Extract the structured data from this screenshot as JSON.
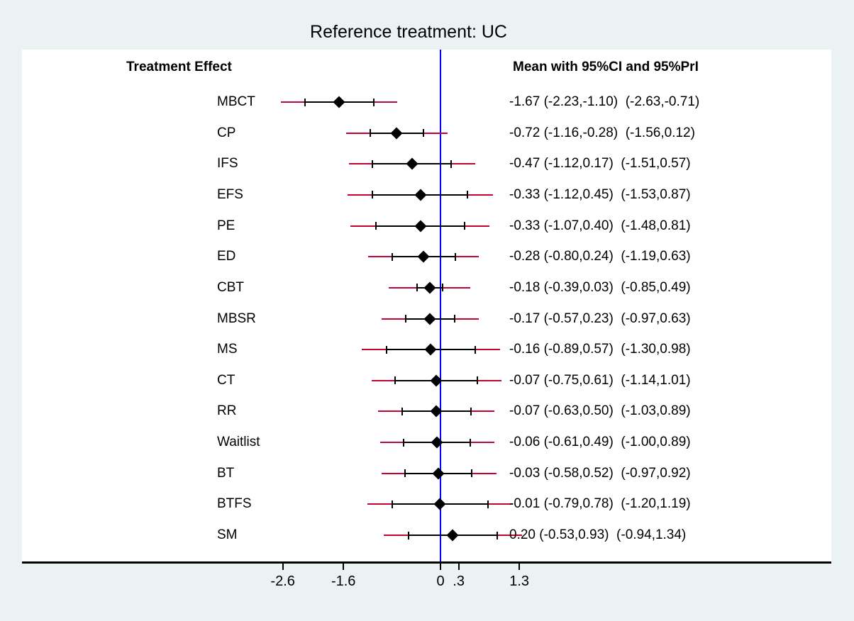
{
  "title": "Reference treatment: UC",
  "columns": {
    "left_header": "Treatment Effect",
    "right_header": "Mean with 95%CI and 95%PrI"
  },
  "chart_data": {
    "type": "forest",
    "title": "Reference treatment: UC",
    "xlabel": "",
    "ylabel": "",
    "reference_value": 0,
    "legend": "none",
    "grid": "off",
    "x_ticks": [
      {
        "label": "-2.6",
        "value": -2.6
      },
      {
        "label": "-1.6",
        "value": -1.6
      },
      {
        "label": "0",
        "value": 0
      },
      {
        "label": ".3",
        "value": 0.3
      },
      {
        "label": "1.3",
        "value": 1.3
      }
    ],
    "colors": {
      "background": "#eaf2f3",
      "plot_background": "#ffffff",
      "confidence_interval": "#000000",
      "prediction_interval": "#c10534",
      "reference_line": "#0000ff"
    },
    "rows": [
      {
        "label": "MBCT",
        "mean": -1.67,
        "ci": [
          -2.23,
          -1.1
        ],
        "pri": [
          -2.63,
          -0.71
        ],
        "text": "-1.67 (-2.23,-1.10)  (-2.63,-0.71)"
      },
      {
        "label": "CP",
        "mean": -0.72,
        "ci": [
          -1.16,
          -0.28
        ],
        "pri": [
          -1.56,
          0.12
        ],
        "text": "-0.72 (-1.16,-0.28)  (-1.56,0.12)"
      },
      {
        "label": "IFS",
        "mean": -0.47,
        "ci": [
          -1.12,
          0.17
        ],
        "pri": [
          -1.51,
          0.57
        ],
        "text": "-0.47 (-1.12,0.17)  (-1.51,0.57)"
      },
      {
        "label": "EFS",
        "mean": -0.33,
        "ci": [
          -1.12,
          0.45
        ],
        "pri": [
          -1.53,
          0.87
        ],
        "text": "-0.33 (-1.12,0.45)  (-1.53,0.87)"
      },
      {
        "label": "PE",
        "mean": -0.33,
        "ci": [
          -1.07,
          0.4
        ],
        "pri": [
          -1.48,
          0.81
        ],
        "text": "-0.33 (-1.07,0.40)  (-1.48,0.81)"
      },
      {
        "label": "ED",
        "mean": -0.28,
        "ci": [
          -0.8,
          0.24
        ],
        "pri": [
          -1.19,
          0.63
        ],
        "text": "-0.28 (-0.80,0.24)  (-1.19,0.63)"
      },
      {
        "label": "CBT",
        "mean": -0.18,
        "ci": [
          -0.39,
          0.03
        ],
        "pri": [
          -0.85,
          0.49
        ],
        "text": "-0.18 (-0.39,0.03)  (-0.85,0.49)"
      },
      {
        "label": "MBSR",
        "mean": -0.17,
        "ci": [
          -0.57,
          0.23
        ],
        "pri": [
          -0.97,
          0.63
        ],
        "text": "-0.17 (-0.57,0.23)  (-0.97,0.63)"
      },
      {
        "label": "MS",
        "mean": -0.16,
        "ci": [
          -0.89,
          0.57
        ],
        "pri": [
          -1.3,
          0.98
        ],
        "text": "-0.16 (-0.89,0.57)  (-1.30,0.98)"
      },
      {
        "label": "CT",
        "mean": -0.07,
        "ci": [
          -0.75,
          0.61
        ],
        "pri": [
          -1.14,
          1.01
        ],
        "text": "-0.07 (-0.75,0.61)  (-1.14,1.01)"
      },
      {
        "label": "RR",
        "mean": -0.07,
        "ci": [
          -0.63,
          0.5
        ],
        "pri": [
          -1.03,
          0.89
        ],
        "text": "-0.07 (-0.63,0.50)  (-1.03,0.89)"
      },
      {
        "label": "Waitlist",
        "mean": -0.06,
        "ci": [
          -0.61,
          0.49
        ],
        "pri": [
          -1.0,
          0.89
        ],
        "text": "-0.06 (-0.61,0.49)  (-1.00,0.89)"
      },
      {
        "label": "BT",
        "mean": -0.03,
        "ci": [
          -0.58,
          0.52
        ],
        "pri": [
          -0.97,
          0.92
        ],
        "text": "-0.03 (-0.58,0.52)  (-0.97,0.92)"
      },
      {
        "label": "BTFS",
        "mean": -0.01,
        "ci": [
          -0.79,
          0.78
        ],
        "pri": [
          -1.2,
          1.19
        ],
        "text": "-0.01 (-0.79,0.78)  (-1.20,1.19)"
      },
      {
        "label": "SM",
        "mean": 0.2,
        "ci": [
          -0.53,
          0.93
        ],
        "pri": [
          -0.94,
          1.34
        ],
        "text": "0.20 (-0.53,0.93)  (-0.94,1.34)"
      }
    ]
  }
}
